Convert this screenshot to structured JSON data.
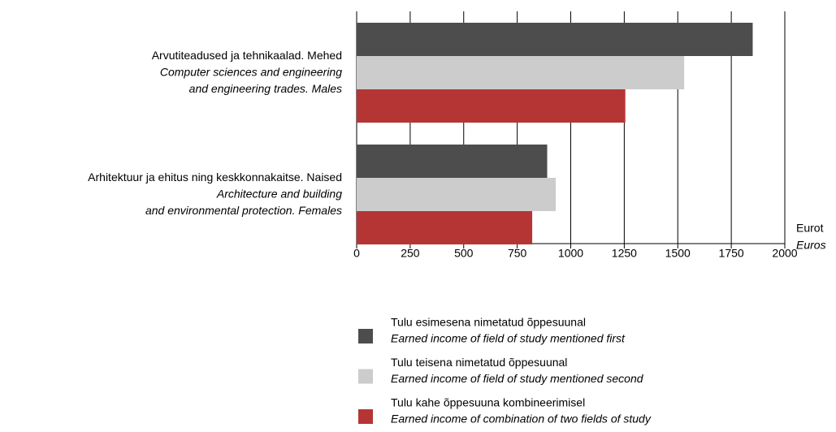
{
  "chart_data": {
    "type": "barh",
    "categories": [
      [
        "Arvutiteadused ja tehnikaalad. Mehed",
        "Computer sciences and engineering",
        "and engineering trades. Males"
      ],
      [
        "Arhitektuur ja ehitus ning keskkonnakaitse. Naised",
        "Architecture and building",
        "and environmental protection. Females"
      ]
    ],
    "series": [
      {
        "name": "Tulu esimesena nimetatud õppesuunal",
        "name_en": "Earned income of field of study mentioned first",
        "color": "#4d4d4d",
        "values": [
          1850,
          890
        ]
      },
      {
        "name": "Tulu teisena nimetatud õppesuunal",
        "name_en": "Earned income of field of study mentioned second",
        "color": "#cccccc",
        "values": [
          1530,
          930
        ]
      },
      {
        "name": "Tulu kahe õppesuuna kombineerimisel",
        "name_en": "Earned income of combination of two fields of study",
        "color": "#b53535",
        "values": [
          1255,
          820
        ]
      }
    ],
    "x_label": "Eurot",
    "x_label_en": "Euros",
    "xlim": [
      0,
      2000
    ],
    "xticks": [
      0,
      250,
      500,
      750,
      1000,
      1250,
      1500,
      1750,
      2000
    ],
    "grid": true,
    "legend": "bottom"
  }
}
